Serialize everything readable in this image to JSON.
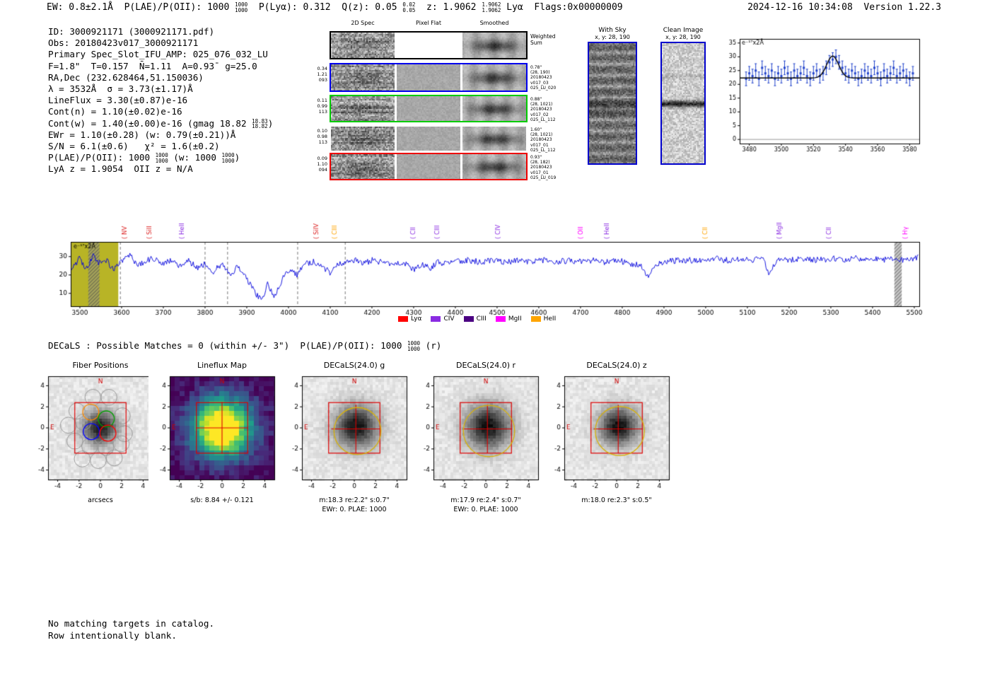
{
  "meta": {
    "accent_red": "#cc0000",
    "spectrum_blue": "#0000dd",
    "border_blue": "#0000cc",
    "olive_band": "#b8b426"
  },
  "header": {
    "segments": [
      {
        "text": "EW: 0.8±2.1Å  "
      },
      {
        "text": "P(LAE)/P(OII): 1000 ",
        "stack": [
          "1000",
          "1000"
        ]
      },
      {
        "text": "  P(Lyα): 0.312  "
      },
      {
        "text": "Q(z): 0.05 ",
        "stack": [
          "0.02",
          "0.05"
        ]
      },
      {
        "text": "  z: 1.9062 ",
        "stack": [
          "1.9062",
          "1.9062"
        ]
      },
      {
        "text": " Lyα  Flags:0x00000009"
      }
    ],
    "timestamp": "2024-12-16 10:34:08  Version 1.22.3"
  },
  "info_block": {
    "lines": [
      [
        {
          "text": "ID: 3000921171 (3000921171.pdf)"
        }
      ],
      [
        {
          "text": "Obs: 20180423v017_3000921171"
        }
      ],
      [
        {
          "text": "Primary Spec_Slot_IFU_AMP: 025_076_032_LU"
        }
      ],
      [
        {
          "text": "F=1.8\"  T=0.157  N̄=1.11  A=0.93̄  g=25.0"
        }
      ],
      [
        {
          "text": "RA,Dec (232.628464,51.150036)"
        }
      ],
      [
        {
          "text": "λ = 3532Å  σ = 3.73(±1.17)Å"
        }
      ],
      [
        {
          "text": "LineFlux = 3.30(±0.87)e-16"
        }
      ],
      [
        {
          "text": "Cont(n) = 1.10(±0.02)e-16"
        }
      ],
      [
        {
          "text": "Cont(w) = 1.40(±0.00)e-16 (gmag 18.82 ",
          "stack": [
            "18.83",
            "18.82"
          ]
        },
        {
          "text": ")"
        }
      ],
      [
        {
          "text": "EWr = 1.10(±0.28) (w: 0.79(±0.21))Å"
        }
      ],
      [
        {
          "text": "S/N = 6.1(±0.6)   χ² = 1.6(±0.2)"
        }
      ],
      [
        {
          "text": "P(LAE)/P(OII): 1000 ",
          "stack": [
            "1000",
            "1000"
          ]
        },
        {
          "text": " (w: 1000 ",
          "stack": [
            "1000",
            "1000"
          ]
        },
        {
          "text": ")"
        }
      ],
      [
        {
          "text": "LyA z = 1.9054  OII z = N/A"
        }
      ]
    ]
  },
  "cutout_grid": {
    "col_titles": [
      "2D Spec",
      "Pixel Flat",
      "Smoothed"
    ],
    "rows": [
      {
        "border": "#000000",
        "left_labels": [],
        "right_labels": [
          "Weighted",
          "Sum"
        ]
      },
      {
        "border": "#0000ee",
        "left_labels": [
          "0.34",
          "1.21",
          "093"
        ],
        "right_labels": [
          "0.78\"",
          "(28, 190)",
          "20180423",
          "v017_03",
          "025_LU_020"
        ]
      },
      {
        "border": "#00cc00",
        "left_labels": [
          "0.11",
          "0.99",
          "113"
        ],
        "right_labels": [
          "0.88\"",
          "(28, 1021)",
          "20180423",
          "v017_02",
          "025_LL_112"
        ]
      },
      {
        "border": "none",
        "left_labels": [
          "0.10",
          "0.98",
          "113"
        ],
        "right_labels": [
          "1.60\"",
          "(28, 1021)",
          "20180423",
          "v017_01",
          "025_LL_112"
        ]
      },
      {
        "border": "#ee0000",
        "left_labels": [
          "0.09",
          "1.10",
          "094"
        ],
        "right_labels": [
          "0.93\"",
          "(28, 182)",
          "20180423",
          "v017_01",
          "025_LU_019"
        ]
      }
    ]
  },
  "with_sky": {
    "title": "With Sky",
    "subtitle": "x, y: 28, 190"
  },
  "clean_image": {
    "title": "Clean Image",
    "subtitle": "x, y: 28, 190"
  },
  "decals_line": {
    "segments": [
      {
        "text": "DECaLS : Possible Matches = 0 (within +/- 3\")  P(LAE)/P(OII): 1000 ",
        "stack": [
          "1000",
          "1000"
        ]
      },
      {
        "text": " (r)"
      }
    ]
  },
  "panels": [
    {
      "id": "fiber",
      "title": "Fiber Positions",
      "captions": [
        "arcsecs"
      ]
    },
    {
      "id": "lineflux",
      "title": "Lineflux Map",
      "captions": [
        "s/b: 8.84 +/- 0.121"
      ]
    },
    {
      "id": "g",
      "title": "DECaLS(24.0) g",
      "captions": [
        "m:18.3 re:2.2\" s:0.7\"",
        "EWr: 0. PLAE: 1000"
      ]
    },
    {
      "id": "r",
      "title": "DECaLS(24.0) r",
      "captions": [
        "m:17.9 re:2.4\" s:0.7\"",
        "EWr: 0. PLAE: 1000"
      ]
    },
    {
      "id": "z",
      "title": "DECaLS(24.0) z",
      "captions": [
        "m:18.0 re:2.3\" s:0.5\""
      ]
    }
  ],
  "footer": {
    "lines": [
      "No matching targets in catalog.",
      "Row intentionally blank."
    ]
  },
  "chart_data": [
    {
      "id": "zoom_spectrum",
      "type": "line",
      "annotation": "e⁻¹⁷x2Å",
      "xlim": [
        3474,
        3586
      ],
      "ylim": [
        -1.5,
        36.5
      ],
      "xticks": [
        3480,
        3500,
        3520,
        3540,
        3560,
        3580
      ],
      "yticks": [
        0,
        5,
        10,
        15,
        20,
        25,
        30,
        35
      ],
      "x_start": 3478,
      "x_step": 2,
      "y": [
        22,
        24,
        23,
        25,
        22,
        26,
        24,
        23,
        25,
        22,
        24,
        23,
        26,
        24,
        22,
        25,
        23,
        24,
        26,
        23,
        22,
        24,
        25,
        23,
        24,
        26,
        28,
        29,
        30,
        28,
        26,
        24,
        23,
        25,
        24,
        22,
        23,
        25,
        24,
        23,
        26,
        24,
        22,
        25,
        23,
        24,
        26,
        23,
        24,
        25,
        23,
        22,
        24
      ],
      "yerr": 2.5,
      "fit": {
        "model": "gaussian+continuum",
        "mu": 3532,
        "sigma": 3.73,
        "amplitude": 8.0,
        "continuum": 22.3
      },
      "zero_line_y": 0,
      "point_color": "#2244cc",
      "fit_color": "#000000"
    },
    {
      "id": "full_spectrum",
      "type": "line",
      "annotation": "e⁻¹⁷x2Å",
      "xlim": [
        3478,
        5512
      ],
      "ylim": [
        3,
        38
      ],
      "xticks": [
        3500,
        3600,
        3700,
        3800,
        3900,
        4000,
        4100,
        4200,
        4300,
        4400,
        4500,
        4600,
        4700,
        4800,
        4900,
        5000,
        5100,
        5200,
        5300,
        5400,
        5500
      ],
      "yticks": [
        10,
        20,
        30
      ],
      "line_color": "#0000dd",
      "shaded_band": {
        "x0": 3478,
        "x1": 3592,
        "color": "#b8b426"
      },
      "hatched_bands": [
        [
          3520,
          3547
        ],
        [
          5452,
          5470
        ]
      ],
      "dashed_lines": [
        3597,
        3800,
        3854,
        4022,
        4136
      ],
      "anchors_x": [
        3480,
        3500,
        3510,
        3520,
        3532,
        3545,
        3560,
        3580,
        3600,
        3620,
        3640,
        3660,
        3680,
        3700,
        3720,
        3740,
        3760,
        3780,
        3800,
        3820,
        3840,
        3860,
        3880,
        3900,
        3920,
        3935,
        3950,
        3968,
        3985,
        4000,
        4020,
        4040,
        4060,
        4080,
        4100,
        4120,
        4140,
        4160,
        4180,
        4200,
        4225,
        4250,
        4275,
        4300,
        4320,
        4340,
        4360,
        4380,
        4400,
        4430,
        4460,
        4490,
        4520,
        4550,
        4580,
        4610,
        4640,
        4670,
        4700,
        4730,
        4760,
        4790,
        4820,
        4845,
        4862,
        4880,
        4900,
        4930,
        4960,
        4990,
        5020,
        5050,
        5080,
        5110,
        5140,
        5152,
        5165,
        5180,
        5210,
        5240,
        5270,
        5300,
        5330,
        5360,
        5390,
        5420,
        5450,
        5480,
        5500,
        5510
      ],
      "anchors_y": [
        24,
        29,
        25,
        24,
        32,
        26,
        29,
        23,
        27,
        31,
        25,
        28,
        29,
        26,
        28,
        25,
        28,
        24,
        26,
        22,
        26,
        20,
        25,
        18,
        10,
        6,
        15,
        8,
        18,
        23,
        20,
        26,
        27,
        25,
        21,
        26,
        27,
        28,
        26,
        28,
        27,
        26,
        27,
        23,
        26,
        24,
        27,
        26,
        27,
        28,
        27,
        28,
        27,
        28,
        27,
        28,
        27,
        28,
        27,
        28,
        27,
        28,
        26,
        25,
        19,
        26,
        27,
        28,
        28,
        28,
        29,
        28,
        29,
        28,
        29,
        20,
        26,
        29,
        28,
        29,
        28,
        29,
        28,
        29,
        29,
        28,
        29,
        28,
        29,
        30
      ],
      "line_labels": [
        {
          "name": "NV",
          "wave": 3608,
          "color": "#dd2222"
        },
        {
          "name": "SiII",
          "wave": 3668,
          "color": "#dd2222"
        },
        {
          "name": "HeII",
          "wave": 3745,
          "color": "#8a2be2"
        },
        {
          "name": "SiIV",
          "wave": 4067,
          "color": "#dd2222"
        },
        {
          "name": "CIII",
          "wave": 4112,
          "color": "#ffa500"
        },
        {
          "name": "CII",
          "wave": 4300,
          "color": "#8a2be2"
        },
        {
          "name": "CIII",
          "wave": 4357,
          "color": "#8a2be2"
        },
        {
          "name": "CIV",
          "wave": 4503,
          "color": "#8a2be2"
        },
        {
          "name": "OII",
          "wave": 4702,
          "color": "#ff00ff"
        },
        {
          "name": "HeII",
          "wave": 4765,
          "color": "#8a2be2"
        },
        {
          "name": "CII",
          "wave": 5000,
          "color": "#ffa500"
        },
        {
          "name": "MgII",
          "wave": 5177,
          "color": "#8a2be2"
        },
        {
          "name": "CII",
          "wave": 5297,
          "color": "#8a2be2"
        },
        {
          "name": "Hγ",
          "wave": 5480,
          "color": "#ff00ff"
        }
      ],
      "legend": [
        {
          "label": "Lyα",
          "color": "#ff0000"
        },
        {
          "label": "CIV",
          "color": "#8a2be2"
        },
        {
          "label": "CIII",
          "color": "#4b0082"
        },
        {
          "label": "MgII",
          "color": "#ff00ff"
        },
        {
          "label": "HeII",
          "color": "#ffa500"
        }
      ]
    },
    {
      "id": "fiber_positions",
      "type": "scatter",
      "title": "Fiber Positions",
      "xlabel": "arcsecs",
      "xlim": [
        -4.9,
        4.9
      ],
      "ylim": [
        -4.9,
        4.9
      ],
      "ticks": [
        -4,
        -2,
        0,
        2,
        4
      ],
      "fiber_radius_arcsec": 0.75,
      "gray_fibers": [
        [
          -0.7,
          2.9
        ],
        [
          0.8,
          2.9
        ],
        [
          -2.2,
          1.6
        ],
        [
          2.05,
          1.15
        ],
        [
          -3.0,
          0.25
        ],
        [
          -1.6,
          0.55
        ],
        [
          2.25,
          -0.55
        ],
        [
          -2.4,
          -1.25
        ],
        [
          -1.0,
          -1.75
        ],
        [
          0.5,
          -1.85
        ],
        [
          1.95,
          -1.5
        ],
        [
          -1.7,
          -2.95
        ],
        [
          -0.2,
          -3.1
        ],
        [
          1.3,
          -2.85
        ]
      ],
      "highlight_fibers": [
        {
          "x": -0.9,
          "y": 1.5,
          "color": "#ff8c00"
        },
        {
          "x": 0.55,
          "y": 0.85,
          "color": "#00a000"
        },
        {
          "x": -0.85,
          "y": -0.35,
          "color": "#0000ff"
        },
        {
          "x": 0.7,
          "y": -0.5,
          "color": "#ff0000"
        }
      ],
      "ifu_box_half_arcsec": 2.4,
      "compass": {
        "north": "N",
        "east": "E",
        "color": "#cc0000"
      }
    },
    {
      "id": "lineflux_map",
      "type": "heatmap",
      "title": "Lineflux Map",
      "colormap": "viridis",
      "xlim": [
        -4.9,
        4.9
      ],
      "ylim": [
        -4.9,
        4.9
      ],
      "ticks": [
        -4,
        -2,
        0,
        2,
        4
      ],
      "signal_to_background": "8.84 +/- 0.121",
      "peak_at": [
        0,
        0
      ],
      "box_half_arcsec": 2.4,
      "compass": {
        "north": "N",
        "east": "E",
        "color": "#cc0000"
      }
    },
    {
      "id": "decals_cutouts",
      "type": "heatmap",
      "xlim": [
        -4.9,
        4.9
      ],
      "ylim": [
        -4.9,
        4.9
      ],
      "ticks": [
        -4,
        -2,
        0,
        2,
        4
      ],
      "bands": [
        {
          "band": "g",
          "title": "DECaLS(24.0) g",
          "mag": 18.3,
          "re_arcsec": 2.2,
          "s_arcsec": 0.7,
          "ewr": 0,
          "plae": 1000,
          "aperture_color": "#d6b10a"
        },
        {
          "band": "r",
          "title": "DECaLS(24.0) r",
          "mag": 17.9,
          "re_arcsec": 2.4,
          "s_arcsec": 0.7,
          "ewr": 0,
          "plae": 1000,
          "aperture_color": "#d6b10a"
        },
        {
          "band": "z",
          "title": "DECaLS(24.0) z",
          "mag": 18.0,
          "re_arcsec": 2.3,
          "s_arcsec": 0.5,
          "aperture_color": "#d6b10a"
        }
      ]
    }
  ]
}
